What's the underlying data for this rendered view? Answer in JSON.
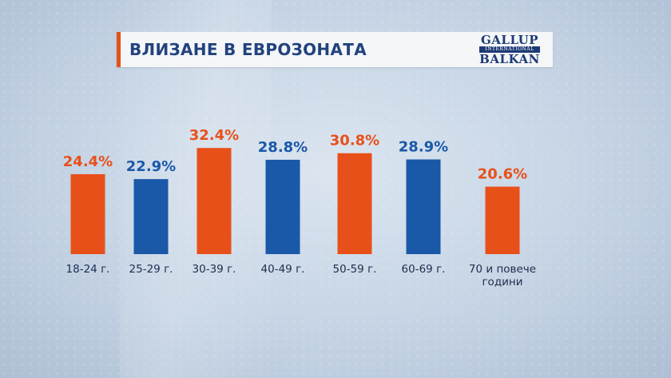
{
  "title": "ВЛИЗАНЕ В ЕВРОЗОНАТА",
  "logo": {
    "line1": "GALLUP",
    "line2": "INTERNATIONAL",
    "line3": "BALKAN"
  },
  "colors": {
    "orange": "#e8501a",
    "blue": "#1a58a8",
    "accent": "#e8501a",
    "title": "#22427e"
  },
  "chart_data": {
    "type": "bar",
    "title": "ВЛИЗАНЕ В ЕВРОЗОНАТА",
    "categories": [
      "18-24 г.",
      "25-29 г.",
      "30-39 г.",
      "40-49 г.",
      "50-59 г.",
      "60-69 г.",
      "70 и повече години"
    ],
    "category_lines": [
      [
        "18-24 г."
      ],
      [
        "25-29 г."
      ],
      [
        "30-39 г."
      ],
      [
        "40-49 г."
      ],
      [
        "50-59 г."
      ],
      [
        "60-69 г."
      ],
      [
        "70 и повече",
        "години"
      ]
    ],
    "values": [
      24.4,
      22.9,
      32.4,
      28.8,
      30.8,
      28.9,
      20.6
    ],
    "value_labels": [
      "24.4%",
      "22.9%",
      "32.4%",
      "28.8%",
      "30.8%",
      "28.9%",
      "20.6%"
    ],
    "bar_colors": [
      "orange",
      "blue",
      "orange",
      "blue",
      "orange",
      "blue",
      "orange"
    ],
    "unit": "%",
    "grid": false,
    "legend": "none"
  }
}
